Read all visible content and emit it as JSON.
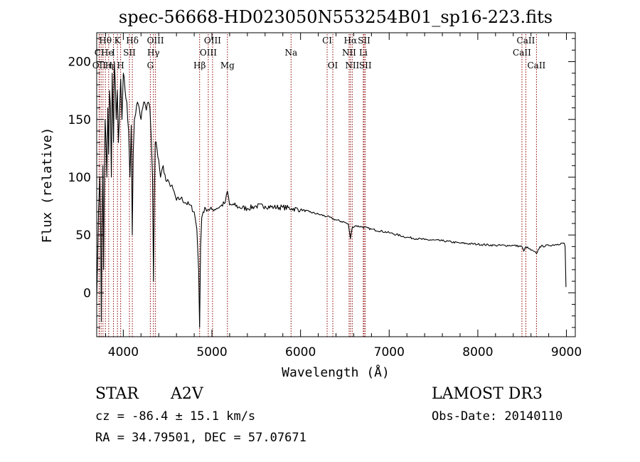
{
  "chart_data": {
    "type": "line",
    "title": "spec-56668-HD023050N553254B01_sp16-223.fits",
    "xlabel": "Wavelength (Å)",
    "ylabel": "Flux (relative)",
    "xlim": [
      3700,
      9100
    ],
    "ylim": [
      -38,
      225
    ],
    "xticks": [
      4000,
      5000,
      6000,
      7000,
      8000,
      9000
    ],
    "yticks": [
      0,
      50,
      100,
      150,
      200
    ],
    "grid": false,
    "series": [
      {
        "x": [
          3700,
          3720,
          3735,
          3745,
          3752,
          3760,
          3770,
          3778,
          3786,
          3795,
          3805,
          3815,
          3825,
          3835,
          3845,
          3855,
          3865,
          3875,
          3889,
          3900,
          3910,
          3920,
          3933,
          3945,
          3955,
          3970,
          3985,
          4000,
          4020,
          4040,
          4060,
          4075,
          4090,
          4101,
          4112,
          4125,
          4140,
          4160,
          4180,
          4200,
          4220,
          4240,
          4260,
          4280,
          4300,
          4315,
          4330,
          4340,
          4350,
          4360,
          4380,
          4400,
          4420,
          4450,
          4480,
          4520,
          4560,
          4600,
          4650,
          4700,
          4750,
          4800,
          4830,
          4850,
          4861,
          4872,
          4885,
          4900,
          4930,
          4960,
          5000,
          5050,
          5100,
          5150,
          5175,
          5200,
          5250,
          5300,
          5400,
          5500,
          5600,
          5700,
          5800,
          5900,
          6000,
          6100,
          6200,
          6300,
          6400,
          6500,
          6540,
          6563,
          6585,
          6620,
          6700,
          6800,
          7000,
          7200,
          7400,
          7600,
          7800,
          8000,
          8200,
          8400,
          8498,
          8520,
          8542,
          8580,
          8662,
          8700,
          8800,
          8900,
          8950,
          8975,
          8985,
          8995
        ],
        "y": [
          -5,
          70,
          100,
          50,
          -25,
          60,
          110,
          20,
          90,
          150,
          130,
          100,
          160,
          120,
          175,
          160,
          100,
          190,
          130,
          200,
          180,
          150,
          175,
          130,
          150,
          185,
          150,
          190,
          175,
          165,
          140,
          100,
          145,
          50,
          120,
          150,
          155,
          165,
          160,
          150,
          160,
          165,
          158,
          165,
          160,
          135,
          100,
          10,
          80,
          130,
          125,
          115,
          100,
          110,
          97,
          95,
          90,
          80,
          82,
          78,
          76,
          70,
          55,
          20,
          -30,
          40,
          65,
          70,
          73,
          72,
          72,
          73,
          75,
          78,
          88,
          76,
          76,
          74,
          73,
          75,
          75,
          74,
          74,
          73,
          72,
          70,
          68,
          66,
          63,
          61,
          59,
          47,
          57,
          58,
          57,
          55,
          52,
          48,
          46,
          45,
          43,
          42,
          41,
          41,
          40,
          36,
          40,
          38,
          34,
          40,
          41,
          42,
          43,
          43,
          40,
          5
        ]
      }
    ],
    "line_labels": {
      "top": [
        {
          "text": "Hθ",
          "x": 3798
        },
        {
          "text": "K",
          "x": 3934
        },
        {
          "text": "Hδ",
          "x": 4102
        },
        {
          "text": "OIII",
          "x": 4363
        },
        {
          "text": "OIII",
          "x": 5007
        },
        {
          "text": "CI",
          "x": 6300
        },
        {
          "text": "Hα",
          "x": 6563
        },
        {
          "text": "SII",
          "x": 6717
        },
        {
          "text": "CaII",
          "x": 8542
        }
      ],
      "middle": [
        {
          "text": "CI",
          "x": 3730
        },
        {
          "text": "He",
          "x": 3820
        },
        {
          "text": "I",
          "x": 3889
        },
        {
          "text": "SII",
          "x": 4069
        },
        {
          "text": "Hγ",
          "x": 4340
        },
        {
          "text": "OIII",
          "x": 4959
        },
        {
          "text": "Na",
          "x": 5893
        },
        {
          "text": "NII",
          "x": 6548
        },
        {
          "text": "Li",
          "x": 6708
        },
        {
          "text": "CaII",
          "x": 8498
        }
      ],
      "bottom": [
        {
          "text": "OII",
          "x": 3727
        },
        {
          "text": "H",
          "x": 3835
        },
        {
          "text": "η",
          "x": 3860
        },
        {
          "text": "H",
          "x": 3970
        },
        {
          "text": "G",
          "x": 4305
        },
        {
          "text": "Hβ",
          "x": 4861
        },
        {
          "text": "Mg",
          "x": 5175
        },
        {
          "text": "OI",
          "x": 6364
        },
        {
          "text": "NII",
          "x": 6583
        },
        {
          "text": "SII",
          "x": 6731
        },
        {
          "text": "CaII",
          "x": 8662
        }
      ]
    },
    "line_markers": [
      3727,
      3730,
      3750,
      3771,
      3798,
      3835,
      3889,
      3934,
      3970,
      4069,
      4102,
      4305,
      4340,
      4363,
      4861,
      4959,
      5007,
      5175,
      5893,
      6300,
      6364,
      6548,
      6563,
      6583,
      6708,
      6717,
      6731,
      8498,
      8542,
      8662
    ],
    "colors": {
      "spectrum": "#000000",
      "markers": "#8b0000",
      "text": "#000000"
    }
  },
  "info": {
    "object_type": "STAR",
    "subclass": "A2V",
    "survey": "LAMOST DR3",
    "cz": "cz = -86.4 ± 15.1 km/s",
    "obs_date": "Obs-Date: 20140110",
    "coords": "RA =  34.79501, DEC =  57.07671"
  }
}
